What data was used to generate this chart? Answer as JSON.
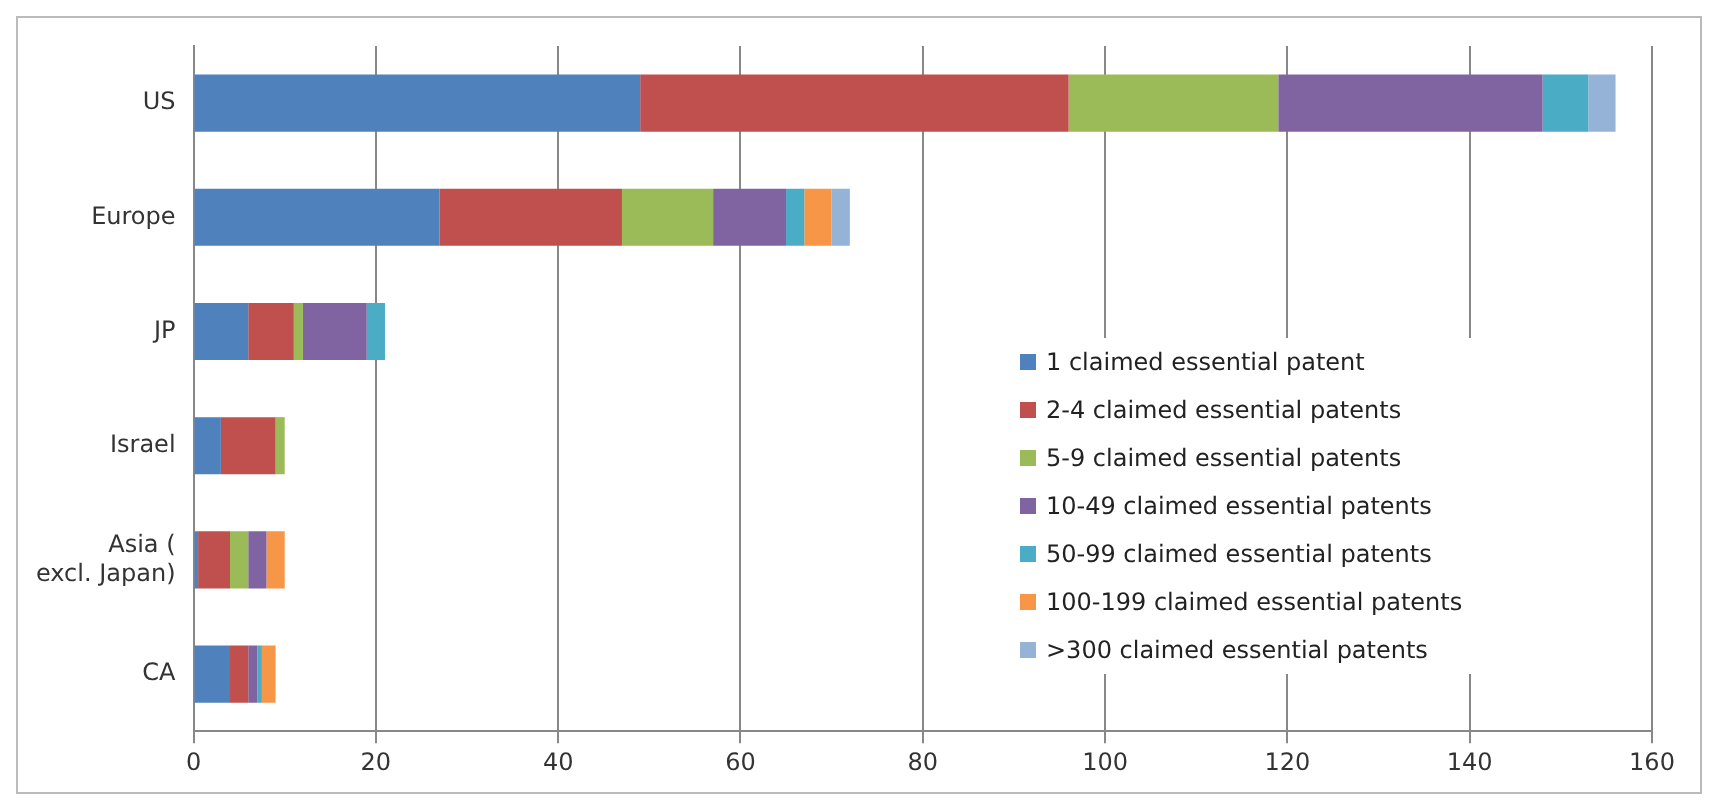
{
  "chart_data": {
    "type": "bar",
    "orientation": "horizontal",
    "stacked": true,
    "categories": [
      "US",
      "Europe",
      "JP",
      "Israel",
      "Asia (excl. Japan)",
      "CA"
    ],
    "series": [
      {
        "name": "1 claimed essential patent",
        "color": "#4f81bd",
        "values": [
          49,
          27,
          6,
          3,
          0.5,
          4
        ]
      },
      {
        "name": "2-4 claimed essential patents",
        "color": "#c0504d",
        "values": [
          47,
          20,
          5,
          6,
          3.5,
          2
        ]
      },
      {
        "name": "5-9 claimed essential patents",
        "color": "#9bbb59",
        "values": [
          23,
          10,
          1,
          1,
          2,
          0
        ]
      },
      {
        "name": "10-49 claimed essential patents",
        "color": "#8064a2",
        "values": [
          29,
          8,
          7,
          0,
          2,
          1
        ]
      },
      {
        "name": "50-99 claimed essential patents",
        "color": "#4bacc6",
        "values": [
          5,
          2,
          2,
          0,
          0,
          0.5
        ]
      },
      {
        "name": "100-199 claimed essential patents",
        "color": "#f79646",
        "values": [
          0,
          3,
          0,
          0,
          2,
          1.5
        ]
      },
      {
        "name": ">300 claimed essential patents",
        "color": "#95b3d7",
        "values": [
          3,
          2,
          0,
          0,
          0,
          0
        ]
      }
    ],
    "xlim": [
      0,
      160
    ],
    "xticks": [
      0,
      20,
      40,
      60,
      80,
      100,
      120,
      140,
      160
    ],
    "grid": "x",
    "legend": "right"
  }
}
